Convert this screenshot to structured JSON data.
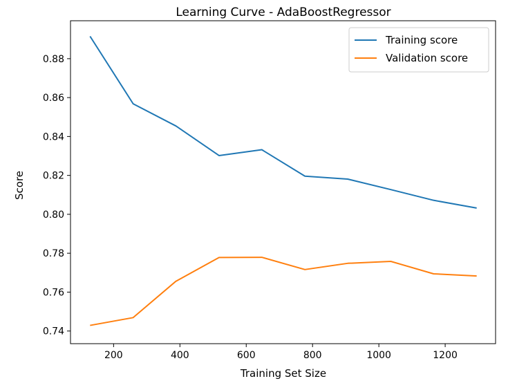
{
  "chart_data": {
    "type": "line",
    "title": "Learning Curve - AdaBoostRegressor",
    "xlabel": "Training Set Size",
    "ylabel": "Score",
    "xlim": [
      70,
      1352
    ],
    "ylim": [
      0.7335,
      0.8995
    ],
    "xticks": [
      200,
      400,
      600,
      800,
      1000,
      1200
    ],
    "yticks": [
      0.74,
      0.76,
      0.78,
      0.8,
      0.82,
      0.84,
      0.86,
      0.88
    ],
    "xtick_labels": [
      "200",
      "400",
      "600",
      "800",
      "1000",
      "1200"
    ],
    "ytick_labels": [
      "0.74",
      "0.76",
      "0.78",
      "0.80",
      "0.82",
      "0.84",
      "0.86",
      "0.88"
    ],
    "grid": false,
    "legend_position": "top-right",
    "x": [
      129,
      259,
      388,
      518,
      647,
      777,
      906,
      1036,
      1165,
      1295
    ],
    "series": [
      {
        "name": "Training score",
        "color": "#1f77b4",
        "values": [
          0.8915,
          0.8568,
          0.8454,
          0.8302,
          0.8332,
          0.8196,
          0.8181,
          0.8127,
          0.8072,
          0.8032
        ]
      },
      {
        "name": "Validation score",
        "color": "#ff7f0e",
        "values": [
          0.7429,
          0.7469,
          0.7656,
          0.7778,
          0.7779,
          0.7716,
          0.7748,
          0.7758,
          0.7694,
          0.7683
        ]
      }
    ]
  }
}
